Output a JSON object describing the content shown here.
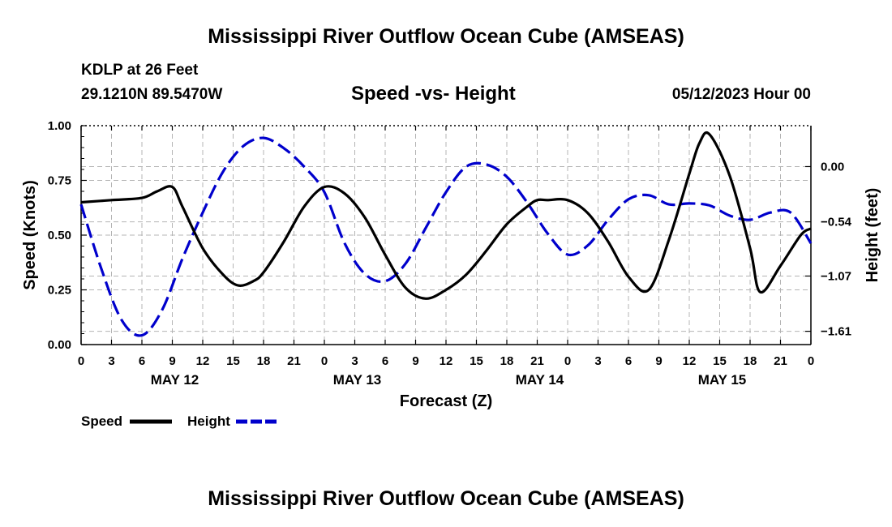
{
  "header": {
    "main_title": "Mississippi River Outflow Ocean Cube (AMSEAS)",
    "station": "KDLP at 26 Feet",
    "coords": "29.1210N  89.5470W",
    "datetime": "05/12/2023 Hour 00",
    "footer_title": "Mississippi River Outflow Ocean Cube (AMSEAS)"
  },
  "legend": {
    "speed_label": "Speed",
    "height_label": "Height"
  },
  "chart_data": {
    "type": "line",
    "title": "Speed -vs- Height",
    "xlabel": "Forecast (Z)",
    "ylabel": "Speed (Knots)",
    "ylabel_right": "Height (feet)",
    "xlim": [
      0,
      72
    ],
    "ylim": [
      0,
      1
    ],
    "ylim_right": [
      -1.74,
      0.4
    ],
    "grid": true,
    "x_ticks": [
      0,
      3,
      6,
      9,
      12,
      15,
      18,
      21,
      24,
      27,
      30,
      33,
      36,
      39,
      42,
      45,
      48,
      51,
      54,
      57,
      60,
      63,
      66,
      69,
      72
    ],
    "x_tick_labels": [
      "0",
      "3",
      "6",
      "9",
      "12",
      "15",
      "18",
      "21",
      "0",
      "3",
      "6",
      "9",
      "12",
      "15",
      "18",
      "21",
      "0",
      "3",
      "6",
      "9",
      "12",
      "15",
      "18",
      "21",
      "0"
    ],
    "date_labels": [
      {
        "x": 9,
        "label": "MAY 12"
      },
      {
        "x": 27,
        "label": "MAY 13"
      },
      {
        "x": 45,
        "label": "MAY 14"
      },
      {
        "x": 63,
        "label": "MAY 15"
      }
    ],
    "y_ticks": [
      0,
      0.25,
      0.5,
      0.75,
      1.0
    ],
    "y_tick_labels": [
      "0.00",
      "0.25",
      "0.50",
      "0.75",
      "1.00"
    ],
    "y_right_ticks": [
      -1.61,
      -1.07,
      -0.54,
      0.0
    ],
    "y_right_tick_labels": [
      "−1.61",
      "−1.07",
      "−0.54",
      "0.00"
    ],
    "series": [
      {
        "name": "Speed",
        "axis": "left",
        "color": "#000000",
        "dash": "solid",
        "x": [
          0,
          3,
          6,
          7.5,
          9,
          10,
          12,
          14,
          15.5,
          17,
          18,
          20,
          22,
          24,
          26,
          28,
          30,
          32,
          34,
          36,
          38,
          40,
          42,
          44,
          45,
          46,
          48,
          50,
          52,
          54,
          56,
          58,
          60,
          61,
          62,
          64,
          66,
          67,
          69,
          71,
          72
        ],
        "values": [
          0.65,
          0.66,
          0.67,
          0.7,
          0.72,
          0.63,
          0.44,
          0.32,
          0.27,
          0.29,
          0.33,
          0.47,
          0.63,
          0.72,
          0.69,
          0.58,
          0.41,
          0.26,
          0.21,
          0.25,
          0.32,
          0.43,
          0.55,
          0.63,
          0.66,
          0.66,
          0.66,
          0.6,
          0.47,
          0.31,
          0.25,
          0.48,
          0.78,
          0.92,
          0.96,
          0.77,
          0.44,
          0.24,
          0.36,
          0.5,
          0.53
        ]
      },
      {
        "name": "Height",
        "axis": "right",
        "color": "#0000cc",
        "dash": "dashed",
        "x": [
          0,
          2,
          4,
          6,
          8,
          10,
          12,
          14,
          16,
          18,
          20,
          22,
          24,
          26,
          28,
          30,
          32,
          34,
          36,
          38,
          40,
          42,
          44,
          46,
          48,
          50,
          52,
          54,
          56,
          58,
          60,
          62,
          64,
          66,
          68,
          70,
          72
        ],
        "values": [
          -0.37,
          -1.0,
          -1.5,
          -1.65,
          -1.4,
          -0.9,
          -0.45,
          -0.05,
          0.2,
          0.28,
          0.18,
          0.0,
          -0.25,
          -0.75,
          -1.05,
          -1.12,
          -0.95,
          -0.6,
          -0.25,
          0.0,
          0.02,
          -0.1,
          -0.35,
          -0.65,
          -0.86,
          -0.77,
          -0.52,
          -0.32,
          -0.28,
          -0.37,
          -0.36,
          -0.38,
          -0.48,
          -0.52,
          -0.45,
          -0.45,
          -0.75
        ]
      }
    ]
  }
}
